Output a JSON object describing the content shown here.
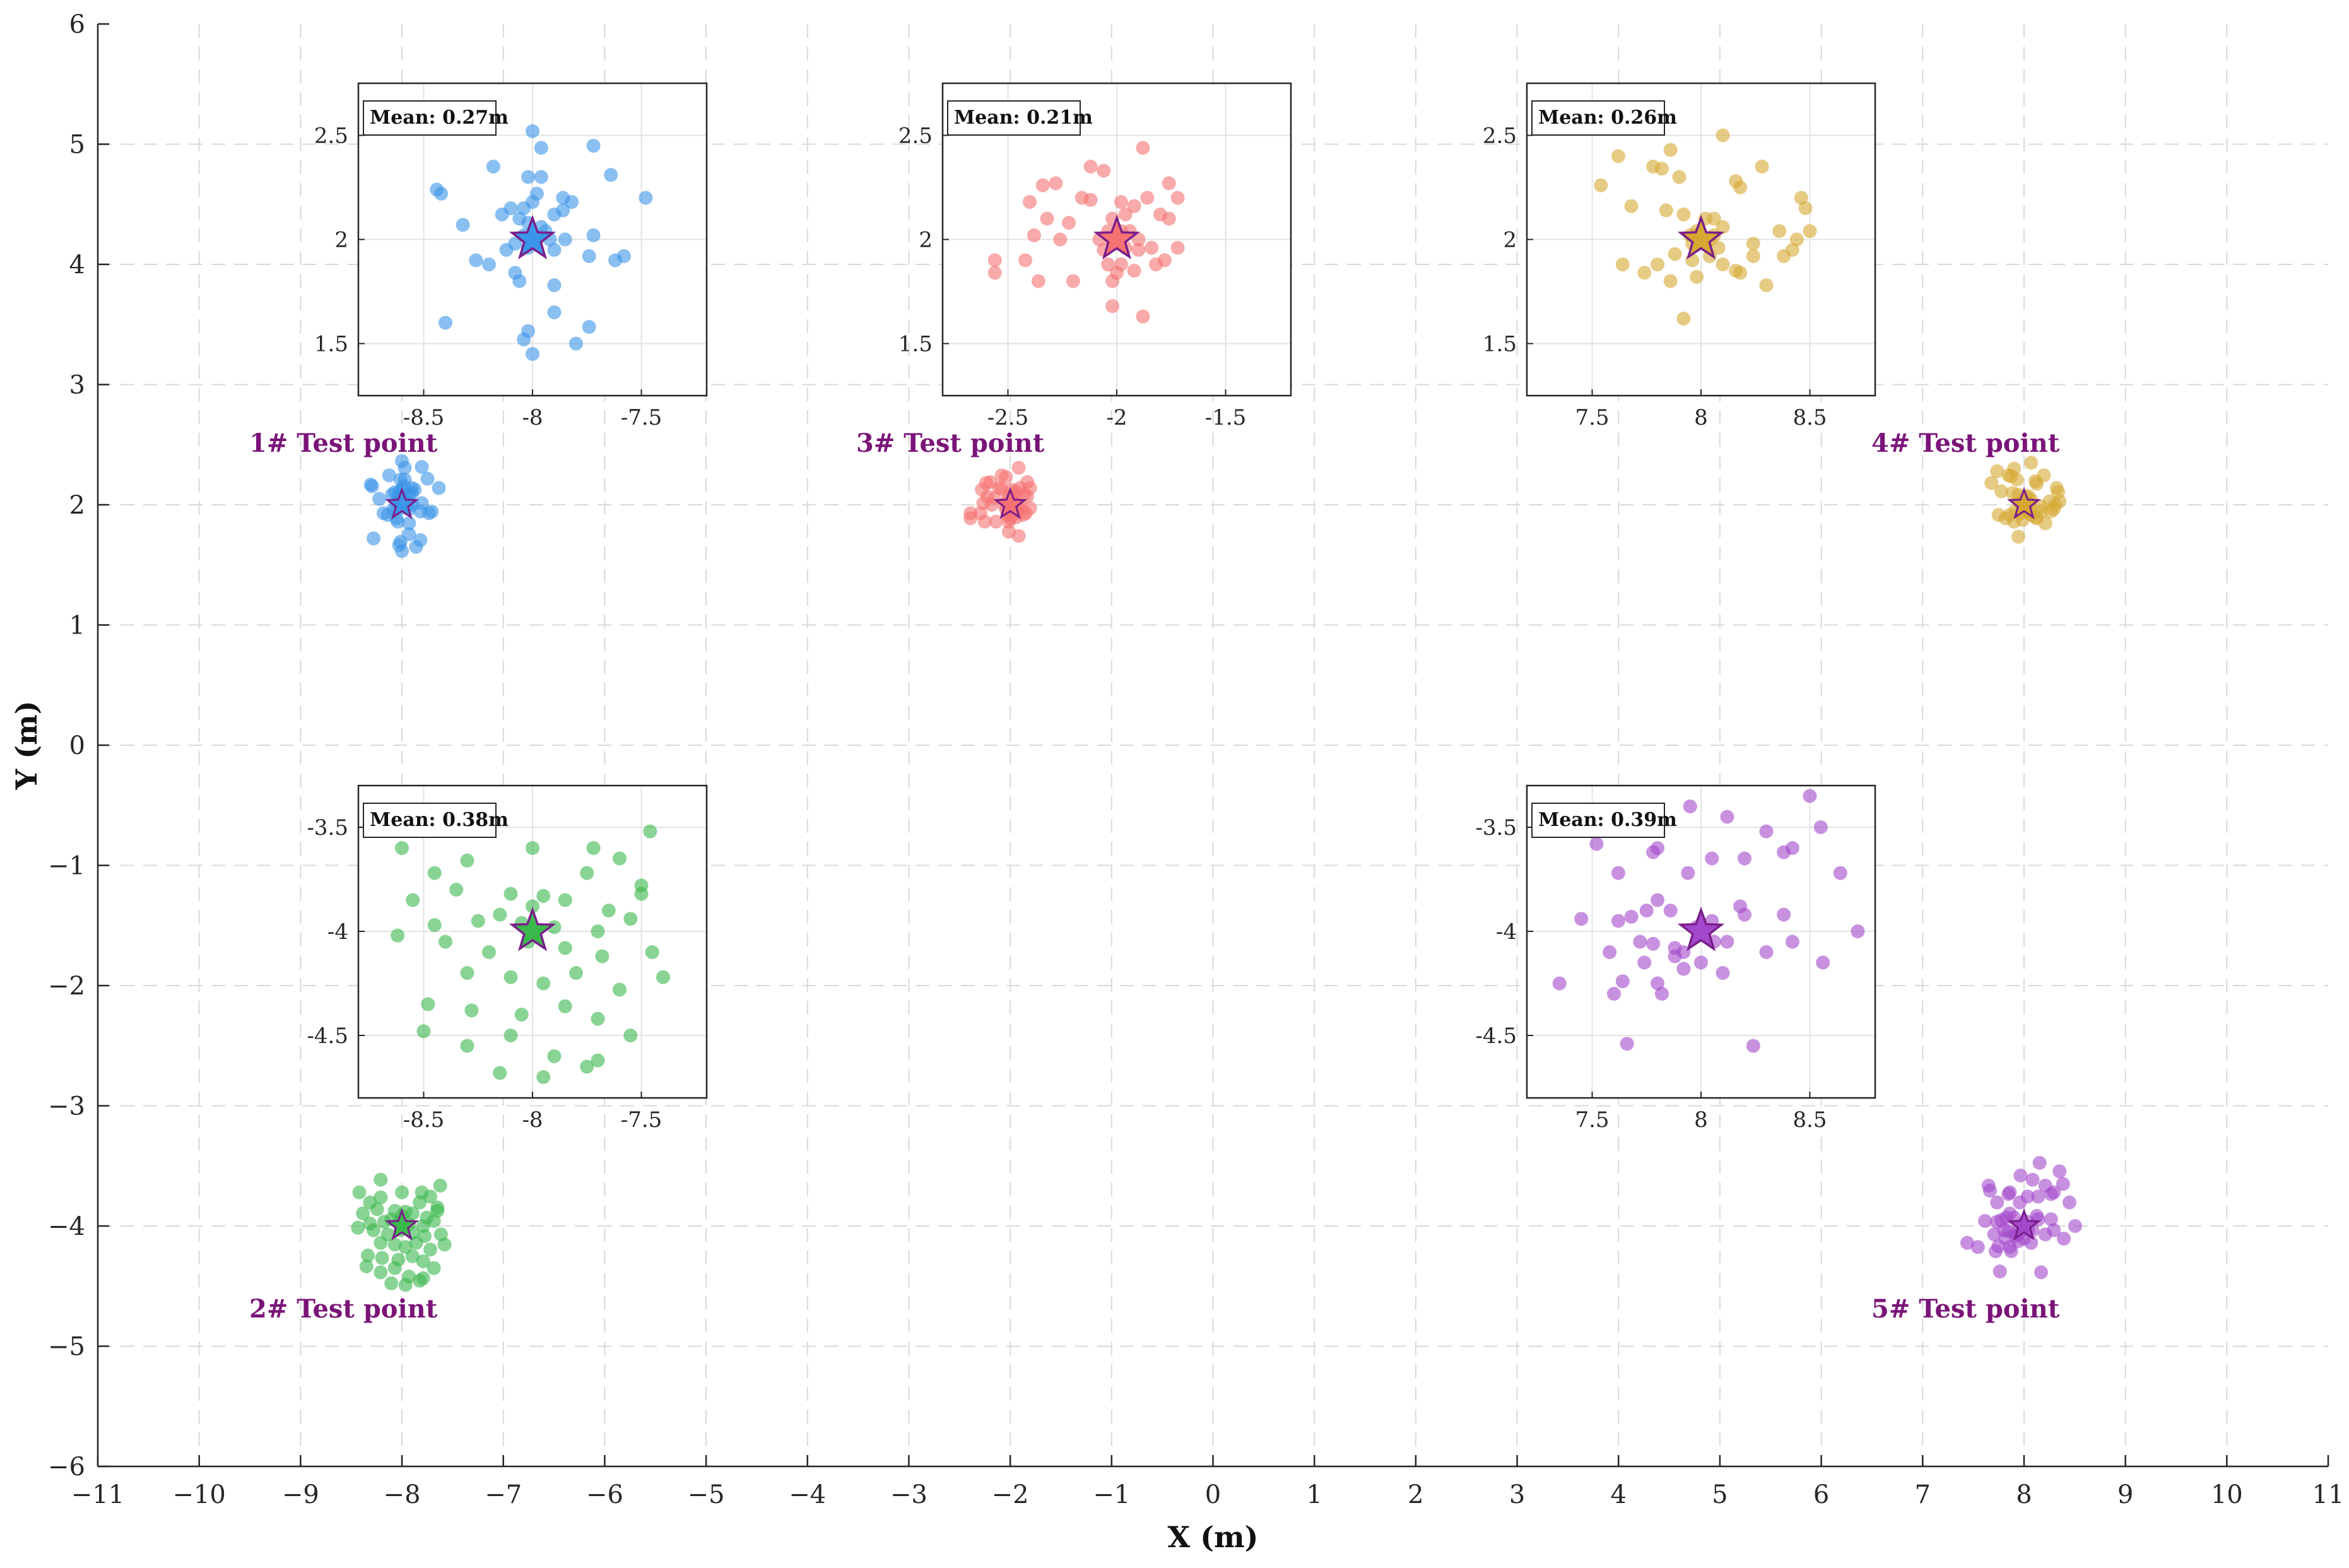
{
  "chart_data": {
    "type": "scatter",
    "xlabel": "X (m)",
    "ylabel": "Y (m)",
    "xlim": [
      -11,
      11
    ],
    "ylim": [
      -6,
      6
    ],
    "x_ticks": [
      -11,
      -10,
      -9,
      -8,
      -7,
      -6,
      -5,
      -4,
      -3,
      -2,
      -1,
      0,
      1,
      2,
      3,
      4,
      5,
      6,
      7,
      8,
      9,
      10,
      11
    ],
    "y_ticks": [
      -6,
      -5,
      -4,
      -3,
      -2,
      -1,
      0,
      1,
      2,
      3,
      4,
      5,
      6
    ],
    "grid": "dashed",
    "colors": {
      "tp1": "#3b95e8",
      "tp2": "#3bb84c",
      "tp3": "#f57272",
      "tp4": "#d6a832",
      "tp5": "#a348cc",
      "star_edge": "#7a1e8a",
      "label": "#7a1478"
    },
    "test_points": [
      {
        "id": "tp1",
        "label": "1# Test point",
        "center": [
          -8,
          2
        ],
        "mean_error": "Mean: 0.27m",
        "inset_xlim": [
          -8.8,
          -7.2
        ],
        "inset_ylim": [
          1.25,
          2.75
        ],
        "inset_xticks": [
          -8.5,
          -8,
          -7.5
        ],
        "inset_yticks": [
          1.5,
          2,
          2.5
        ],
        "points": [
          [
            -8.0,
            2.52
          ],
          [
            -7.96,
            2.44
          ],
          [
            -7.72,
            2.45
          ],
          [
            -8.18,
            2.35
          ],
          [
            -8.02,
            2.3
          ],
          [
            -7.96,
            2.3
          ],
          [
            -7.64,
            2.31
          ],
          [
            -8.44,
            2.24
          ],
          [
            -8.42,
            2.22
          ],
          [
            -8.1,
            2.15
          ],
          [
            -8.0,
            2.18
          ],
          [
            -7.86,
            2.2
          ],
          [
            -7.82,
            2.18
          ],
          [
            -7.48,
            2.2
          ],
          [
            -8.14,
            2.12
          ],
          [
            -8.06,
            2.1
          ],
          [
            -7.9,
            2.12
          ],
          [
            -8.02,
            2.08
          ],
          [
            -7.96,
            2.06
          ],
          [
            -8.04,
            2.02
          ],
          [
            -7.98,
            2.0
          ],
          [
            -8.08,
            1.98
          ],
          [
            -7.94,
            2.04
          ],
          [
            -8.32,
            2.07
          ],
          [
            -7.72,
            2.02
          ],
          [
            -8.02,
            1.96
          ],
          [
            -7.9,
            1.95
          ],
          [
            -8.26,
            1.9
          ],
          [
            -8.2,
            1.88
          ],
          [
            -8.08,
            1.84
          ],
          [
            -7.74,
            1.92
          ],
          [
            -7.62,
            1.9
          ],
          [
            -7.58,
            1.92
          ],
          [
            -8.06,
            1.8
          ],
          [
            -7.9,
            1.78
          ],
          [
            -8.4,
            1.6
          ],
          [
            -8.02,
            1.56
          ],
          [
            -8.04,
            1.52
          ],
          [
            -7.9,
            1.65
          ],
          [
            -7.74,
            1.58
          ],
          [
            -7.8,
            1.5
          ],
          [
            -8.0,
            1.45
          ],
          [
            -7.98,
            2.22
          ],
          [
            -7.85,
            2.0
          ],
          [
            -8.12,
            1.95
          ],
          [
            -7.92,
            2.0
          ],
          [
            -8.04,
            2.15
          ],
          [
            -7.86,
            2.14
          ]
        ]
      },
      {
        "id": "tp2",
        "label": "2# Test point",
        "center": [
          -8,
          -4
        ],
        "mean_error": "Mean: 0.38m",
        "inset_xlim": [
          -8.8,
          -7.2
        ],
        "inset_ylim": [
          -4.8,
          -3.3
        ],
        "inset_xticks": [
          -8.5,
          -8,
          -7.5
        ],
        "inset_yticks": [
          -4.5,
          -4,
          -3.5
        ],
        "points": [
          [
            -8.6,
            -3.6
          ],
          [
            -8.3,
            -3.45
          ],
          [
            -8.0,
            -3.6
          ],
          [
            -7.72,
            -3.6
          ],
          [
            -7.46,
            -3.52
          ],
          [
            -8.45,
            -3.72
          ],
          [
            -8.3,
            -3.66
          ],
          [
            -8.1,
            -3.82
          ],
          [
            -7.95,
            -3.83
          ],
          [
            -7.75,
            -3.72
          ],
          [
            -7.6,
            -3.65
          ],
          [
            -7.5,
            -3.78
          ],
          [
            -8.55,
            -3.85
          ],
          [
            -8.35,
            -3.8
          ],
          [
            -8.15,
            -3.92
          ],
          [
            -8.0,
            -3.88
          ],
          [
            -7.85,
            -3.85
          ],
          [
            -7.65,
            -3.9
          ],
          [
            -7.5,
            -3.82
          ],
          [
            -8.45,
            -3.97
          ],
          [
            -8.25,
            -3.95
          ],
          [
            -8.05,
            -3.96
          ],
          [
            -7.9,
            -3.98
          ],
          [
            -7.7,
            -4.0
          ],
          [
            -7.55,
            -3.94
          ],
          [
            -8.62,
            -4.02
          ],
          [
            -8.4,
            -4.05
          ],
          [
            -8.2,
            -4.1
          ],
          [
            -8.02,
            -4.05
          ],
          [
            -7.85,
            -4.08
          ],
          [
            -7.68,
            -4.12
          ],
          [
            -7.45,
            -4.1
          ],
          [
            -8.3,
            -4.2
          ],
          [
            -8.1,
            -4.22
          ],
          [
            -7.95,
            -4.25
          ],
          [
            -7.8,
            -4.2
          ],
          [
            -7.6,
            -4.28
          ],
          [
            -7.4,
            -4.22
          ],
          [
            -8.48,
            -4.35
          ],
          [
            -8.28,
            -4.38
          ],
          [
            -8.05,
            -4.4
          ],
          [
            -7.85,
            -4.36
          ],
          [
            -7.7,
            -4.42
          ],
          [
            -8.5,
            -4.48
          ],
          [
            -8.3,
            -4.55
          ],
          [
            -8.1,
            -4.5
          ],
          [
            -7.9,
            -4.6
          ],
          [
            -7.7,
            -4.62
          ],
          [
            -7.55,
            -4.5
          ],
          [
            -8.15,
            -4.68
          ],
          [
            -7.95,
            -4.7
          ],
          [
            -7.75,
            -4.65
          ]
        ]
      },
      {
        "id": "tp3",
        "label": "3# Test point",
        "center": [
          -2,
          2
        ],
        "mean_error": "Mean: 0.21m",
        "inset_xlim": [
          -2.8,
          -1.2
        ],
        "inset_ylim": [
          1.25,
          2.75
        ],
        "inset_xticks": [
          -2.5,
          -2,
          -1.5
        ],
        "inset_yticks": [
          1.5,
          2,
          2.5
        ],
        "points": [
          [
            -1.88,
            2.44
          ],
          [
            -2.12,
            2.35
          ],
          [
            -2.06,
            2.33
          ],
          [
            -2.34,
            2.26
          ],
          [
            -2.28,
            2.27
          ],
          [
            -1.76,
            2.27
          ],
          [
            -2.4,
            2.18
          ],
          [
            -2.16,
            2.2
          ],
          [
            -2.12,
            2.19
          ],
          [
            -1.98,
            2.18
          ],
          [
            -1.92,
            2.16
          ],
          [
            -1.86,
            2.2
          ],
          [
            -1.72,
            2.2
          ],
          [
            -2.32,
            2.1
          ],
          [
            -2.22,
            2.08
          ],
          [
            -2.02,
            2.1
          ],
          [
            -1.96,
            2.12
          ],
          [
            -1.8,
            2.12
          ],
          [
            -1.76,
            2.1
          ],
          [
            -2.38,
            2.02
          ],
          [
            -2.26,
            2.0
          ],
          [
            -2.04,
            2.04
          ],
          [
            -1.98,
            2.04
          ],
          [
            -1.94,
            2.04
          ],
          [
            -2.08,
            2.0
          ],
          [
            -1.9,
            2.0
          ],
          [
            -2.02,
            1.98
          ],
          [
            -1.96,
            1.96
          ],
          [
            -2.06,
            1.95
          ],
          [
            -1.84,
            1.96
          ],
          [
            -1.72,
            1.96
          ],
          [
            -1.9,
            1.95
          ],
          [
            -2.56,
            1.9
          ],
          [
            -2.42,
            1.9
          ],
          [
            -2.04,
            1.88
          ],
          [
            -1.98,
            1.88
          ],
          [
            -1.82,
            1.88
          ],
          [
            -1.78,
            1.9
          ],
          [
            -2.56,
            1.84
          ],
          [
            -2.36,
            1.8
          ],
          [
            -2.2,
            1.8
          ],
          [
            -2.0,
            1.84
          ],
          [
            -2.02,
            1.8
          ],
          [
            -1.92,
            1.85
          ],
          [
            -2.02,
            1.68
          ],
          [
            -1.88,
            1.63
          ]
        ]
      },
      {
        "id": "tp4",
        "label": "4# Test point",
        "center": [
          8,
          2
        ],
        "mean_error": "Mean: 0.26m",
        "inset_xlim": [
          7.2,
          8.8
        ],
        "inset_ylim": [
          1.25,
          2.75
        ],
        "inset_xticks": [
          7.5,
          8,
          8.5
        ],
        "inset_yticks": [
          1.5,
          2,
          2.5
        ],
        "points": [
          [
            7.62,
            2.4
          ],
          [
            7.86,
            2.43
          ],
          [
            8.1,
            2.5
          ],
          [
            7.78,
            2.35
          ],
          [
            7.82,
            2.34
          ],
          [
            8.28,
            2.35
          ],
          [
            8.16,
            2.28
          ],
          [
            7.54,
            2.26
          ],
          [
            7.9,
            2.3
          ],
          [
            8.18,
            2.25
          ],
          [
            7.68,
            2.16
          ],
          [
            7.84,
            2.14
          ],
          [
            7.92,
            2.12
          ],
          [
            8.02,
            2.1
          ],
          [
            8.06,
            2.1
          ],
          [
            8.46,
            2.2
          ],
          [
            8.48,
            2.15
          ],
          [
            8.1,
            2.06
          ],
          [
            8.36,
            2.04
          ],
          [
            8.5,
            2.04
          ],
          [
            7.98,
            2.02
          ],
          [
            8.04,
            2.0
          ],
          [
            7.96,
            1.98
          ],
          [
            8.08,
            1.96
          ],
          [
            8.24,
            1.98
          ],
          [
            8.44,
            2.0
          ],
          [
            8.42,
            1.95
          ],
          [
            8.04,
            1.92
          ],
          [
            7.88,
            1.93
          ],
          [
            7.96,
            1.9
          ],
          [
            8.16,
            1.85
          ],
          [
            8.18,
            1.84
          ],
          [
            7.64,
            1.88
          ],
          [
            7.74,
            1.84
          ],
          [
            7.86,
            1.8
          ],
          [
            7.98,
            1.82
          ],
          [
            8.1,
            1.88
          ],
          [
            8.3,
            1.78
          ],
          [
            7.92,
            1.62
          ],
          [
            8.24,
            1.92
          ],
          [
            8.38,
            1.92
          ],
          [
            7.8,
            1.88
          ],
          [
            7.98,
            2.04
          ],
          [
            8.02,
            1.98
          ],
          [
            7.95,
            2.02
          ],
          [
            8.06,
            2.02
          ]
        ]
      },
      {
        "id": "tp5",
        "label": "5# Test point",
        "center": [
          8,
          -4
        ],
        "mean_error": "Mean: 0.39m",
        "inset_xlim": [
          7.2,
          8.8
        ],
        "inset_ylim": [
          -4.8,
          -3.3
        ],
        "inset_xticks": [
          7.5,
          8,
          8.5
        ],
        "inset_yticks": [
          -4.5,
          -4,
          -3.5
        ],
        "points": [
          [
            8.22,
            -3.25
          ],
          [
            8.5,
            -3.35
          ],
          [
            7.95,
            -3.4
          ],
          [
            8.12,
            -3.45
          ],
          [
            8.3,
            -3.52
          ],
          [
            7.5,
            -3.52
          ],
          [
            8.55,
            -3.5
          ],
          [
            7.8,
            -3.6
          ],
          [
            7.78,
            -3.62
          ],
          [
            8.42,
            -3.6
          ],
          [
            8.38,
            -3.62
          ],
          [
            8.05,
            -3.65
          ],
          [
            8.2,
            -3.65
          ],
          [
            7.52,
            -3.58
          ],
          [
            7.62,
            -3.72
          ],
          [
            7.94,
            -3.72
          ],
          [
            8.64,
            -3.72
          ],
          [
            7.8,
            -3.85
          ],
          [
            7.75,
            -3.9
          ],
          [
            7.86,
            -3.9
          ],
          [
            8.18,
            -3.88
          ],
          [
            8.2,
            -3.92
          ],
          [
            7.62,
            -3.95
          ],
          [
            7.68,
            -3.93
          ],
          [
            8.05,
            -3.95
          ],
          [
            8.38,
            -3.92
          ],
          [
            7.45,
            -3.94
          ],
          [
            7.98,
            -3.98
          ],
          [
            8.02,
            -4.0
          ],
          [
            7.72,
            -4.05
          ],
          [
            7.78,
            -4.06
          ],
          [
            7.88,
            -4.08
          ],
          [
            8.06,
            -4.05
          ],
          [
            8.12,
            -4.05
          ],
          [
            8.3,
            -4.1
          ],
          [
            8.42,
            -4.05
          ],
          [
            8.72,
            -4.0
          ],
          [
            7.58,
            -4.1
          ],
          [
            7.2,
            -4.2
          ],
          [
            7.35,
            -4.25
          ],
          [
            7.64,
            -4.24
          ],
          [
            7.8,
            -4.25
          ],
          [
            7.92,
            -4.18
          ],
          [
            8.0,
            -4.15
          ],
          [
            8.1,
            -4.2
          ],
          [
            8.56,
            -4.15
          ],
          [
            7.6,
            -4.3
          ],
          [
            7.82,
            -4.3
          ],
          [
            7.74,
            -4.15
          ],
          [
            7.88,
            -4.12
          ],
          [
            7.92,
            -4.1
          ],
          [
            7.66,
            -4.54
          ],
          [
            8.24,
            -4.55
          ]
        ]
      }
    ]
  }
}
